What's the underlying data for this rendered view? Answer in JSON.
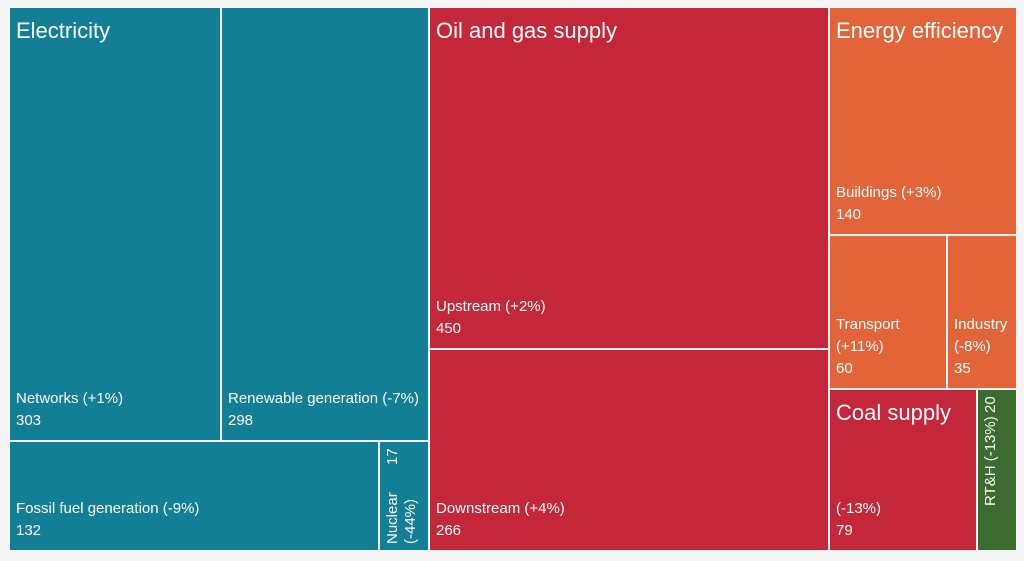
{
  "chart_data": {
    "type": "treemap",
    "groups": [
      {
        "name": "Electricity",
        "color": "#137f96",
        "items": [
          {
            "label": "Networks (+1%)",
            "value": 303
          },
          {
            "label": "Renewable generation (-7%)",
            "value": 298
          },
          {
            "label": "Fossil fuel generation (-9%)",
            "value": 132
          },
          {
            "label": "Nuclear (-44%)",
            "value": 17
          }
        ]
      },
      {
        "name": "Oil and gas supply",
        "color": "#c4273a",
        "items": [
          {
            "label": "Upstream (+2%)",
            "value": 450
          },
          {
            "label": "Downstream (+4%)",
            "value": 266
          }
        ]
      },
      {
        "name": "Energy efficiency",
        "color": "#e4643a",
        "items": [
          {
            "label": "Buildings (+3%)",
            "value": 140
          },
          {
            "label": "Transport (+11%)",
            "value": 60
          },
          {
            "label": "Industry (-8%)",
            "value": 35
          }
        ]
      },
      {
        "name": "Coal supply",
        "color": "#c4273a",
        "items": [
          {
            "label": "(-13%)",
            "value": 79
          }
        ]
      },
      {
        "color": "#3b6b2f",
        "items": [
          {
            "label": "RT&H (-13%)",
            "value": 20
          }
        ]
      }
    ]
  }
}
